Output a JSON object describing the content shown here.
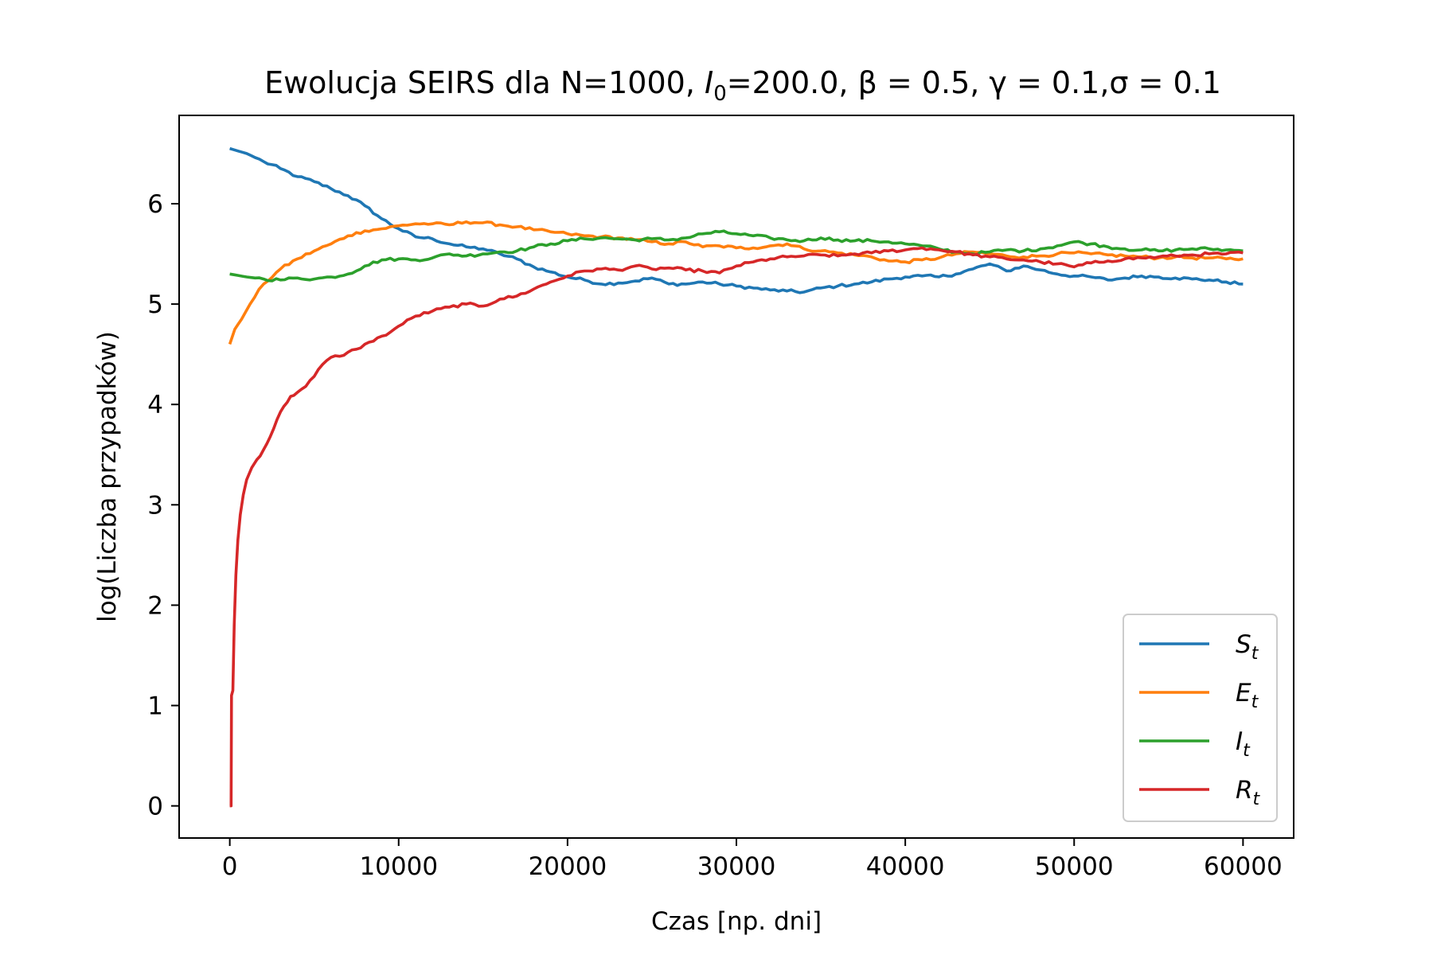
{
  "chart_data": {
    "type": "line",
    "title_parts": {
      "prefix": "Ewolucja SEIRS dla N=1000, ",
      "i0_symbol": "I",
      "i0_sub": "0",
      "i0_value": "=200.0, ",
      "beta": "β = 0.5, ",
      "gamma": "γ = 0.1,",
      "sigma": "σ = 0.1"
    },
    "xlabel": "Czas [np. dni]",
    "ylabel": "log(Liczba przypadków)",
    "xlim": [
      -3000,
      63000
    ],
    "ylim": [
      -0.32,
      6.88
    ],
    "xticks": [
      0,
      10000,
      20000,
      30000,
      40000,
      50000,
      60000
    ],
    "yticks": [
      0,
      1,
      2,
      3,
      4,
      5,
      6
    ],
    "grid": false,
    "legend_position": "lower right",
    "series": [
      {
        "name": "S",
        "subscript": "t",
        "color": "#1f77b4",
        "points": [
          [
            0,
            6.55
          ],
          [
            1000,
            6.5
          ],
          [
            2000,
            6.42
          ],
          [
            3000,
            6.35
          ],
          [
            4000,
            6.27
          ],
          [
            5000,
            6.22
          ],
          [
            6000,
            6.15
          ],
          [
            7000,
            6.08
          ],
          [
            8000,
            5.98
          ],
          [
            9000,
            5.85
          ],
          [
            10000,
            5.75
          ],
          [
            11000,
            5.67
          ],
          [
            12000,
            5.65
          ],
          [
            13000,
            5.6
          ],
          [
            14000,
            5.57
          ],
          [
            15000,
            5.55
          ],
          [
            16000,
            5.5
          ],
          [
            17000,
            5.45
          ],
          [
            18000,
            5.37
          ],
          [
            19000,
            5.32
          ],
          [
            20000,
            5.27
          ],
          [
            21000,
            5.24
          ],
          [
            22000,
            5.2
          ],
          [
            23000,
            5.21
          ],
          [
            24000,
            5.23
          ],
          [
            25000,
            5.26
          ],
          [
            26000,
            5.2
          ],
          [
            27000,
            5.2
          ],
          [
            28000,
            5.22
          ],
          [
            29000,
            5.2
          ],
          [
            30000,
            5.18
          ],
          [
            31000,
            5.16
          ],
          [
            32000,
            5.14
          ],
          [
            33000,
            5.13
          ],
          [
            34000,
            5.12
          ],
          [
            35000,
            5.16
          ],
          [
            36000,
            5.18
          ],
          [
            37000,
            5.2
          ],
          [
            38000,
            5.22
          ],
          [
            39000,
            5.25
          ],
          [
            40000,
            5.27
          ],
          [
            41000,
            5.28
          ],
          [
            42000,
            5.27
          ],
          [
            43000,
            5.3
          ],
          [
            44000,
            5.35
          ],
          [
            45000,
            5.4
          ],
          [
            46000,
            5.33
          ],
          [
            47000,
            5.38
          ],
          [
            48000,
            5.34
          ],
          [
            49000,
            5.3
          ],
          [
            50000,
            5.28
          ],
          [
            51000,
            5.27
          ],
          [
            52000,
            5.24
          ],
          [
            53000,
            5.26
          ],
          [
            54000,
            5.28
          ],
          [
            55000,
            5.27
          ],
          [
            56000,
            5.26
          ],
          [
            57000,
            5.25
          ],
          [
            58000,
            5.24
          ],
          [
            59000,
            5.22
          ],
          [
            60000,
            5.2
          ]
        ]
      },
      {
        "name": "E",
        "subscript": "t",
        "color": "#ff7f0e",
        "points": [
          [
            0,
            4.6
          ],
          [
            300,
            4.75
          ],
          [
            700,
            4.85
          ],
          [
            1200,
            5.0
          ],
          [
            2000,
            5.2
          ],
          [
            3000,
            5.35
          ],
          [
            4000,
            5.45
          ],
          [
            5000,
            5.53
          ],
          [
            6000,
            5.6
          ],
          [
            7000,
            5.68
          ],
          [
            8000,
            5.73
          ],
          [
            9000,
            5.75
          ],
          [
            10000,
            5.78
          ],
          [
            11000,
            5.8
          ],
          [
            12000,
            5.8
          ],
          [
            13000,
            5.79
          ],
          [
            14000,
            5.82
          ],
          [
            15000,
            5.81
          ],
          [
            16000,
            5.79
          ],
          [
            17000,
            5.77
          ],
          [
            18000,
            5.74
          ],
          [
            19000,
            5.72
          ],
          [
            20000,
            5.7
          ],
          [
            21000,
            5.68
          ],
          [
            22000,
            5.67
          ],
          [
            23000,
            5.66
          ],
          [
            24000,
            5.64
          ],
          [
            25000,
            5.62
          ],
          [
            26000,
            5.6
          ],
          [
            27000,
            5.62
          ],
          [
            28000,
            5.57
          ],
          [
            29000,
            5.58
          ],
          [
            30000,
            5.56
          ],
          [
            31000,
            5.56
          ],
          [
            32000,
            5.58
          ],
          [
            33000,
            5.6
          ],
          [
            34000,
            5.55
          ],
          [
            35000,
            5.53
          ],
          [
            36000,
            5.51
          ],
          [
            37000,
            5.49
          ],
          [
            38000,
            5.47
          ],
          [
            39000,
            5.43
          ],
          [
            40000,
            5.42
          ],
          [
            41000,
            5.44
          ],
          [
            42000,
            5.46
          ],
          [
            43000,
            5.5
          ],
          [
            44000,
            5.52
          ],
          [
            45000,
            5.5
          ],
          [
            46000,
            5.48
          ],
          [
            47000,
            5.47
          ],
          [
            48000,
            5.48
          ],
          [
            49000,
            5.5
          ],
          [
            50000,
            5.51
          ],
          [
            51000,
            5.5
          ],
          [
            52000,
            5.49
          ],
          [
            53000,
            5.48
          ],
          [
            54000,
            5.47
          ],
          [
            55000,
            5.46
          ],
          [
            56000,
            5.47
          ],
          [
            57000,
            5.46
          ],
          [
            58000,
            5.46
          ],
          [
            59000,
            5.45
          ],
          [
            60000,
            5.45
          ]
        ]
      },
      {
        "name": "I",
        "subscript": "t",
        "color": "#2ca02c",
        "points": [
          [
            0,
            5.3
          ],
          [
            1000,
            5.27
          ],
          [
            2000,
            5.25
          ],
          [
            3000,
            5.24
          ],
          [
            4000,
            5.26
          ],
          [
            5000,
            5.25
          ],
          [
            6000,
            5.27
          ],
          [
            7000,
            5.3
          ],
          [
            8000,
            5.38
          ],
          [
            9000,
            5.44
          ],
          [
            10000,
            5.45
          ],
          [
            11000,
            5.44
          ],
          [
            12000,
            5.46
          ],
          [
            13000,
            5.5
          ],
          [
            14000,
            5.48
          ],
          [
            15000,
            5.5
          ],
          [
            16000,
            5.52
          ],
          [
            17000,
            5.53
          ],
          [
            18000,
            5.57
          ],
          [
            19000,
            5.6
          ],
          [
            20000,
            5.63
          ],
          [
            21000,
            5.65
          ],
          [
            22000,
            5.66
          ],
          [
            23000,
            5.65
          ],
          [
            24000,
            5.64
          ],
          [
            25000,
            5.65
          ],
          [
            26000,
            5.64
          ],
          [
            27000,
            5.66
          ],
          [
            28000,
            5.7
          ],
          [
            29000,
            5.72
          ],
          [
            30000,
            5.7
          ],
          [
            31000,
            5.68
          ],
          [
            32000,
            5.66
          ],
          [
            33000,
            5.64
          ],
          [
            34000,
            5.63
          ],
          [
            35000,
            5.66
          ],
          [
            36000,
            5.64
          ],
          [
            37000,
            5.63
          ],
          [
            38000,
            5.63
          ],
          [
            39000,
            5.62
          ],
          [
            40000,
            5.6
          ],
          [
            41000,
            5.58
          ],
          [
            42000,
            5.55
          ],
          [
            43000,
            5.52
          ],
          [
            44000,
            5.5
          ],
          [
            45000,
            5.52
          ],
          [
            46000,
            5.54
          ],
          [
            47000,
            5.53
          ],
          [
            48000,
            5.55
          ],
          [
            49000,
            5.58
          ],
          [
            50000,
            5.62
          ],
          [
            51000,
            5.6
          ],
          [
            52000,
            5.57
          ],
          [
            53000,
            5.55
          ],
          [
            54000,
            5.54
          ],
          [
            55000,
            5.53
          ],
          [
            56000,
            5.54
          ],
          [
            57000,
            5.55
          ],
          [
            58000,
            5.55
          ],
          [
            59000,
            5.54
          ],
          [
            60000,
            5.53
          ]
        ]
      },
      {
        "name": "R",
        "subscript": "t",
        "color": "#d62728",
        "points": [
          [
            0,
            0.0
          ],
          [
            80,
            0.0
          ],
          [
            100,
            1.1
          ],
          [
            180,
            1.15
          ],
          [
            260,
            1.8
          ],
          [
            360,
            2.3
          ],
          [
            480,
            2.65
          ],
          [
            620,
            2.9
          ],
          [
            800,
            3.1
          ],
          [
            1000,
            3.25
          ],
          [
            1300,
            3.37
          ],
          [
            1600,
            3.45
          ],
          [
            2000,
            3.55
          ],
          [
            2400,
            3.68
          ],
          [
            2800,
            3.85
          ],
          [
            3200,
            3.98
          ],
          [
            3600,
            4.08
          ],
          [
            4000,
            4.12
          ],
          [
            4500,
            4.18
          ],
          [
            5000,
            4.28
          ],
          [
            5500,
            4.4
          ],
          [
            6000,
            4.47
          ],
          [
            6500,
            4.48
          ],
          [
            7000,
            4.52
          ],
          [
            7500,
            4.55
          ],
          [
            8000,
            4.6
          ],
          [
            8500,
            4.63
          ],
          [
            9000,
            4.68
          ],
          [
            9500,
            4.72
          ],
          [
            10000,
            4.78
          ],
          [
            11000,
            4.88
          ],
          [
            12000,
            4.93
          ],
          [
            13000,
            4.97
          ],
          [
            14000,
            5.0
          ],
          [
            15000,
            4.98
          ],
          [
            16000,
            5.05
          ],
          [
            17000,
            5.08
          ],
          [
            18000,
            5.15
          ],
          [
            19000,
            5.22
          ],
          [
            20000,
            5.28
          ],
          [
            21000,
            5.33
          ],
          [
            22000,
            5.35
          ],
          [
            23000,
            5.34
          ],
          [
            24000,
            5.38
          ],
          [
            25000,
            5.35
          ],
          [
            26000,
            5.36
          ],
          [
            27000,
            5.34
          ],
          [
            28000,
            5.33
          ],
          [
            29000,
            5.31
          ],
          [
            30000,
            5.38
          ],
          [
            31000,
            5.42
          ],
          [
            32000,
            5.45
          ],
          [
            33000,
            5.47
          ],
          [
            34000,
            5.48
          ],
          [
            35000,
            5.49
          ],
          [
            36000,
            5.48
          ],
          [
            37000,
            5.5
          ],
          [
            38000,
            5.51
          ],
          [
            39000,
            5.53
          ],
          [
            40000,
            5.54
          ],
          [
            41000,
            5.56
          ],
          [
            42000,
            5.54
          ],
          [
            43000,
            5.52
          ],
          [
            44000,
            5.49
          ],
          [
            45000,
            5.47
          ],
          [
            46000,
            5.45
          ],
          [
            47000,
            5.44
          ],
          [
            48000,
            5.42
          ],
          [
            49000,
            5.4
          ],
          [
            50000,
            5.37
          ],
          [
            51000,
            5.41
          ],
          [
            52000,
            5.43
          ],
          [
            53000,
            5.45
          ],
          [
            54000,
            5.46
          ],
          [
            55000,
            5.47
          ],
          [
            56000,
            5.48
          ],
          [
            57000,
            5.49
          ],
          [
            58000,
            5.5
          ],
          [
            59000,
            5.5
          ],
          [
            60000,
            5.51
          ]
        ]
      }
    ]
  }
}
